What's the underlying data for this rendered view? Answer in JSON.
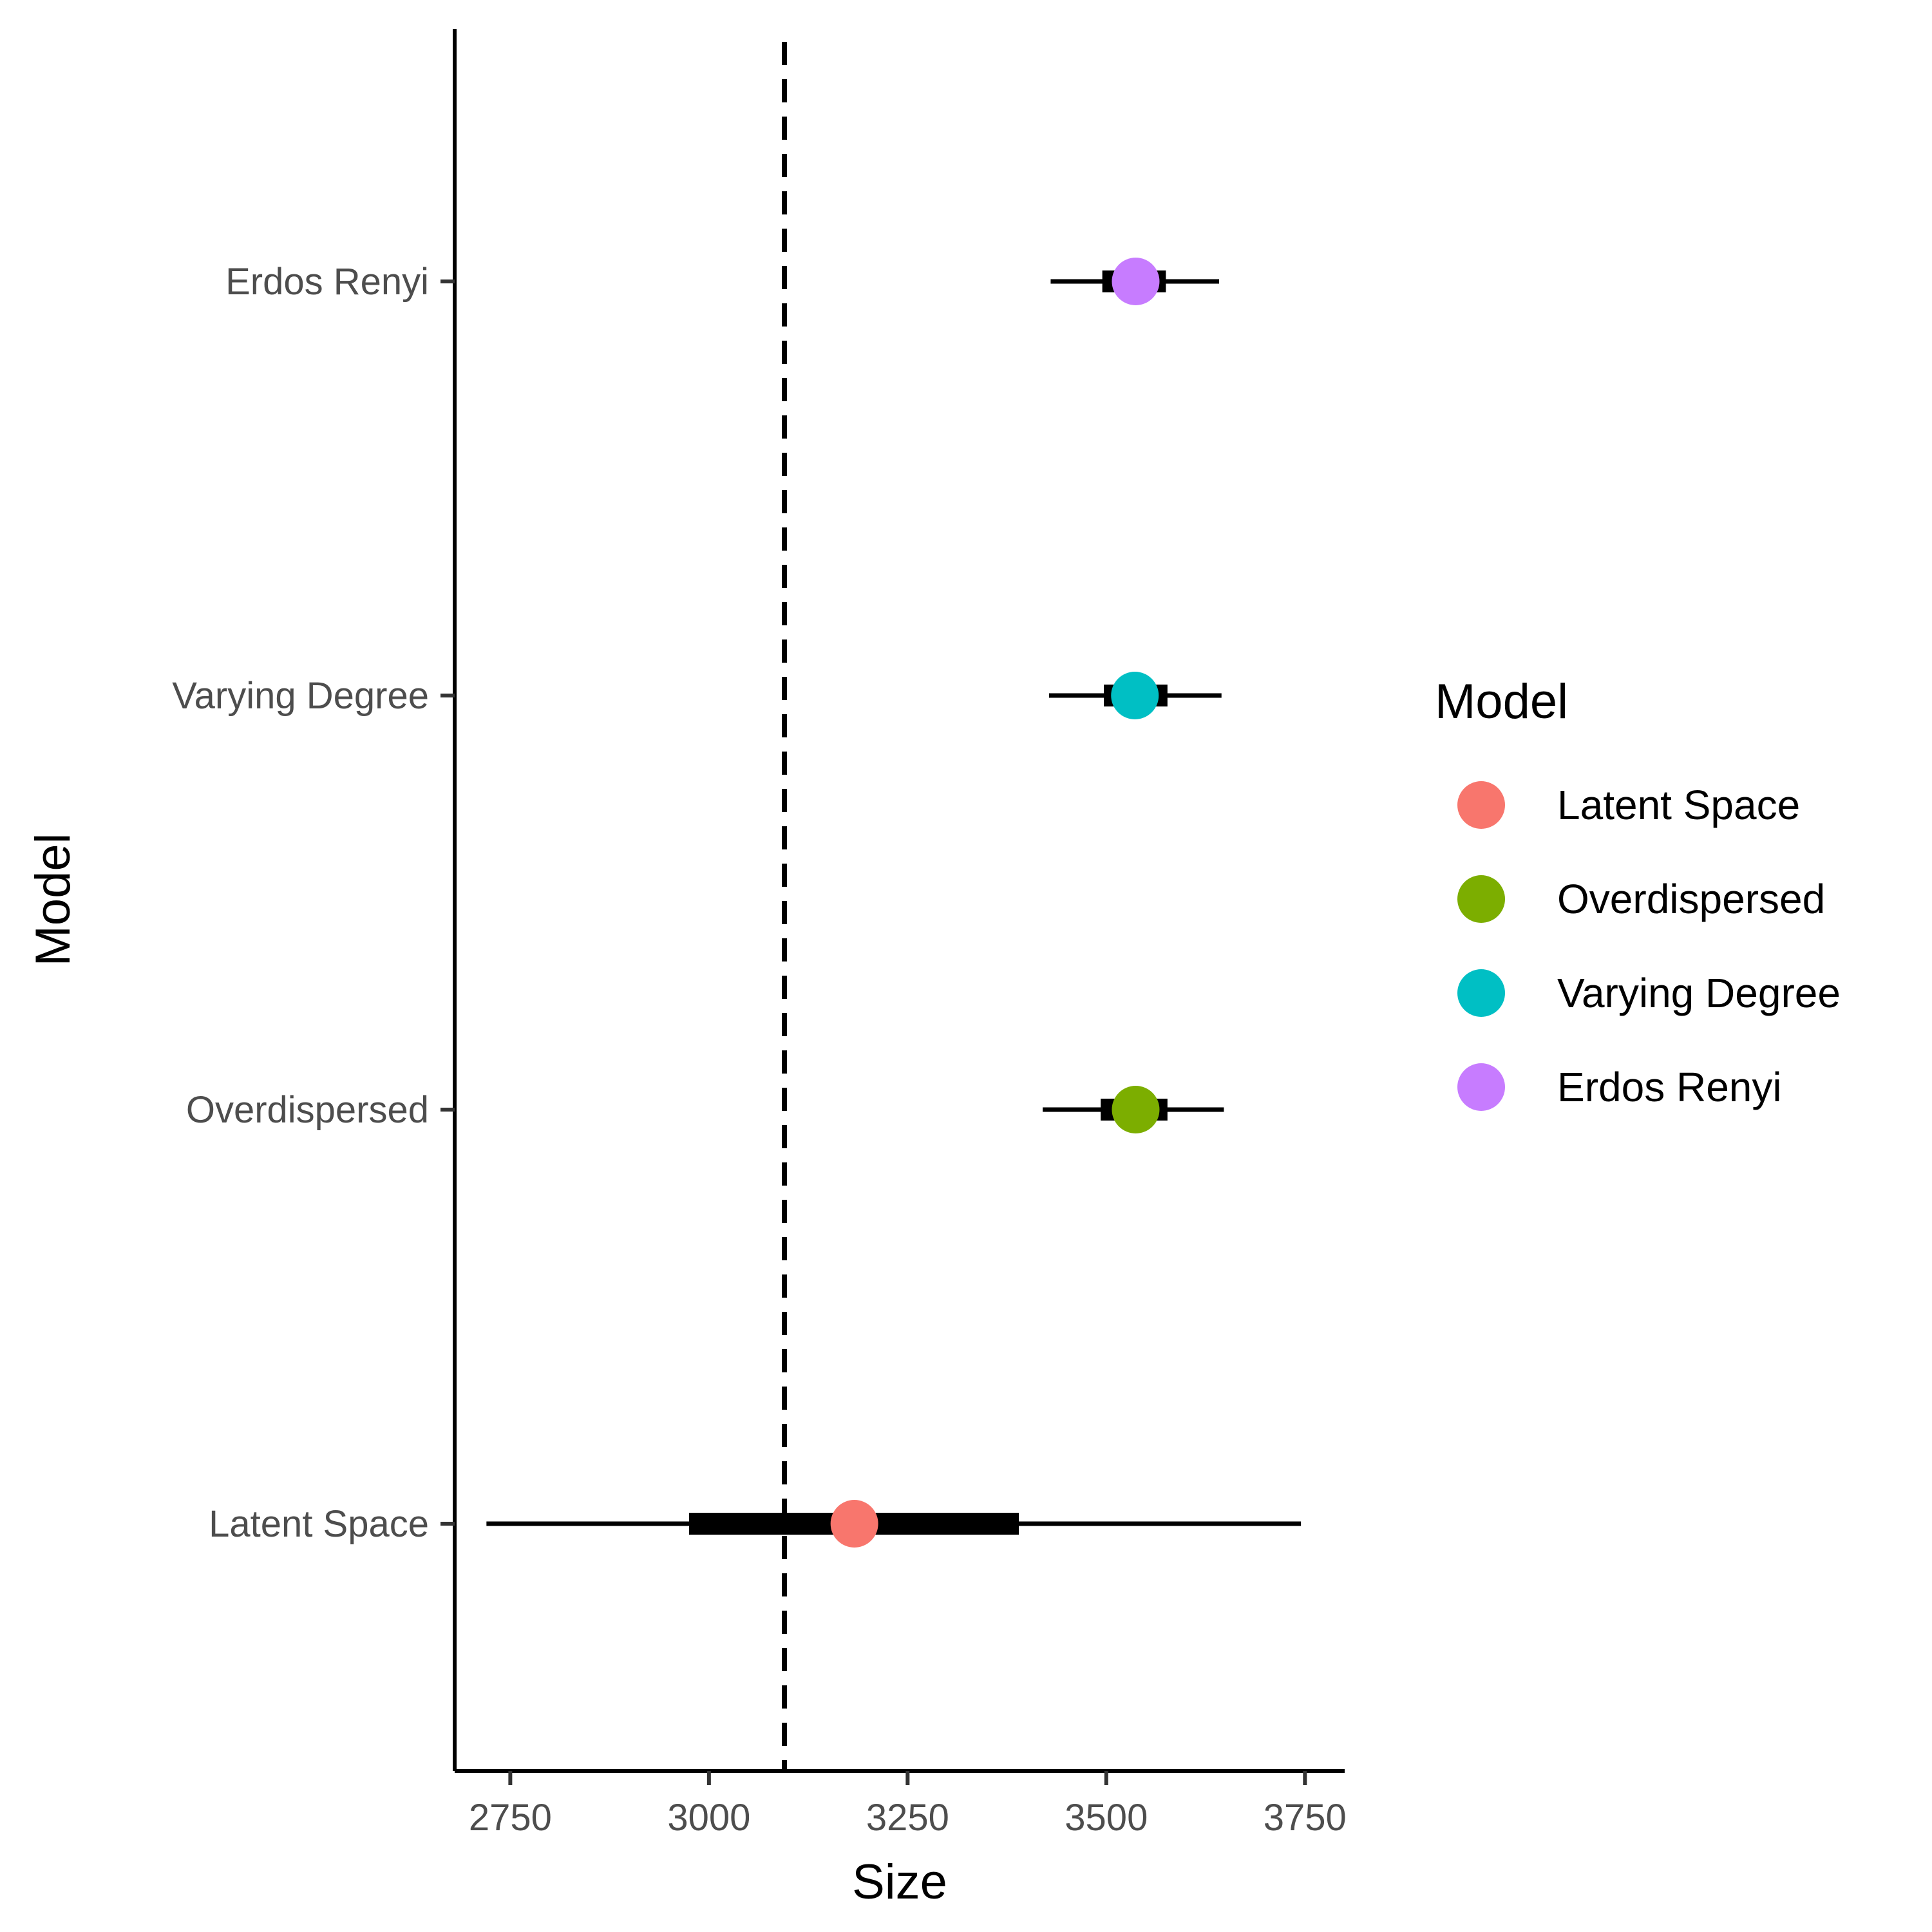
{
  "chart_data": {
    "type": "scatter",
    "xlabel": "Size",
    "ylabel": "Model",
    "xlim": [
      2680,
      3800
    ],
    "x_ticks": [
      2750,
      3000,
      3250,
      3500,
      3750
    ],
    "x_tick_labels": [
      "2750",
      "3000",
      "3250",
      "3500",
      "3750"
    ],
    "y_categories": [
      "Latent Space",
      "Overdispersed",
      "Varying Degree",
      "Erdos Renyi"
    ],
    "reference_line": {
      "x": 3095,
      "style": "dashed"
    },
    "grid": false,
    "series": [
      {
        "name": "Latent Space",
        "color": "#F8766D",
        "estimate": 3183,
        "inner": [
          2975,
          3390
        ],
        "outer": [
          2720,
          3745
        ]
      },
      {
        "name": "Overdispersed",
        "color": "#7CAE00",
        "estimate": 3537,
        "inner": [
          3493,
          3577
        ],
        "outer": [
          3420,
          3648
        ]
      },
      {
        "name": "Varying Degree",
        "color": "#00BFC4",
        "estimate": 3536,
        "inner": [
          3497,
          3577
        ],
        "outer": [
          3428,
          3645
        ]
      },
      {
        "name": "Erdos Renyi",
        "color": "#C77CFF",
        "estimate": 3537,
        "inner": [
          3495,
          3575
        ],
        "outer": [
          3430,
          3642
        ]
      }
    ],
    "legend": {
      "title": "Model",
      "position": "right",
      "entries": [
        "Latent Space",
        "Overdispersed",
        "Varying Degree",
        "Erdos Renyi"
      ]
    }
  }
}
